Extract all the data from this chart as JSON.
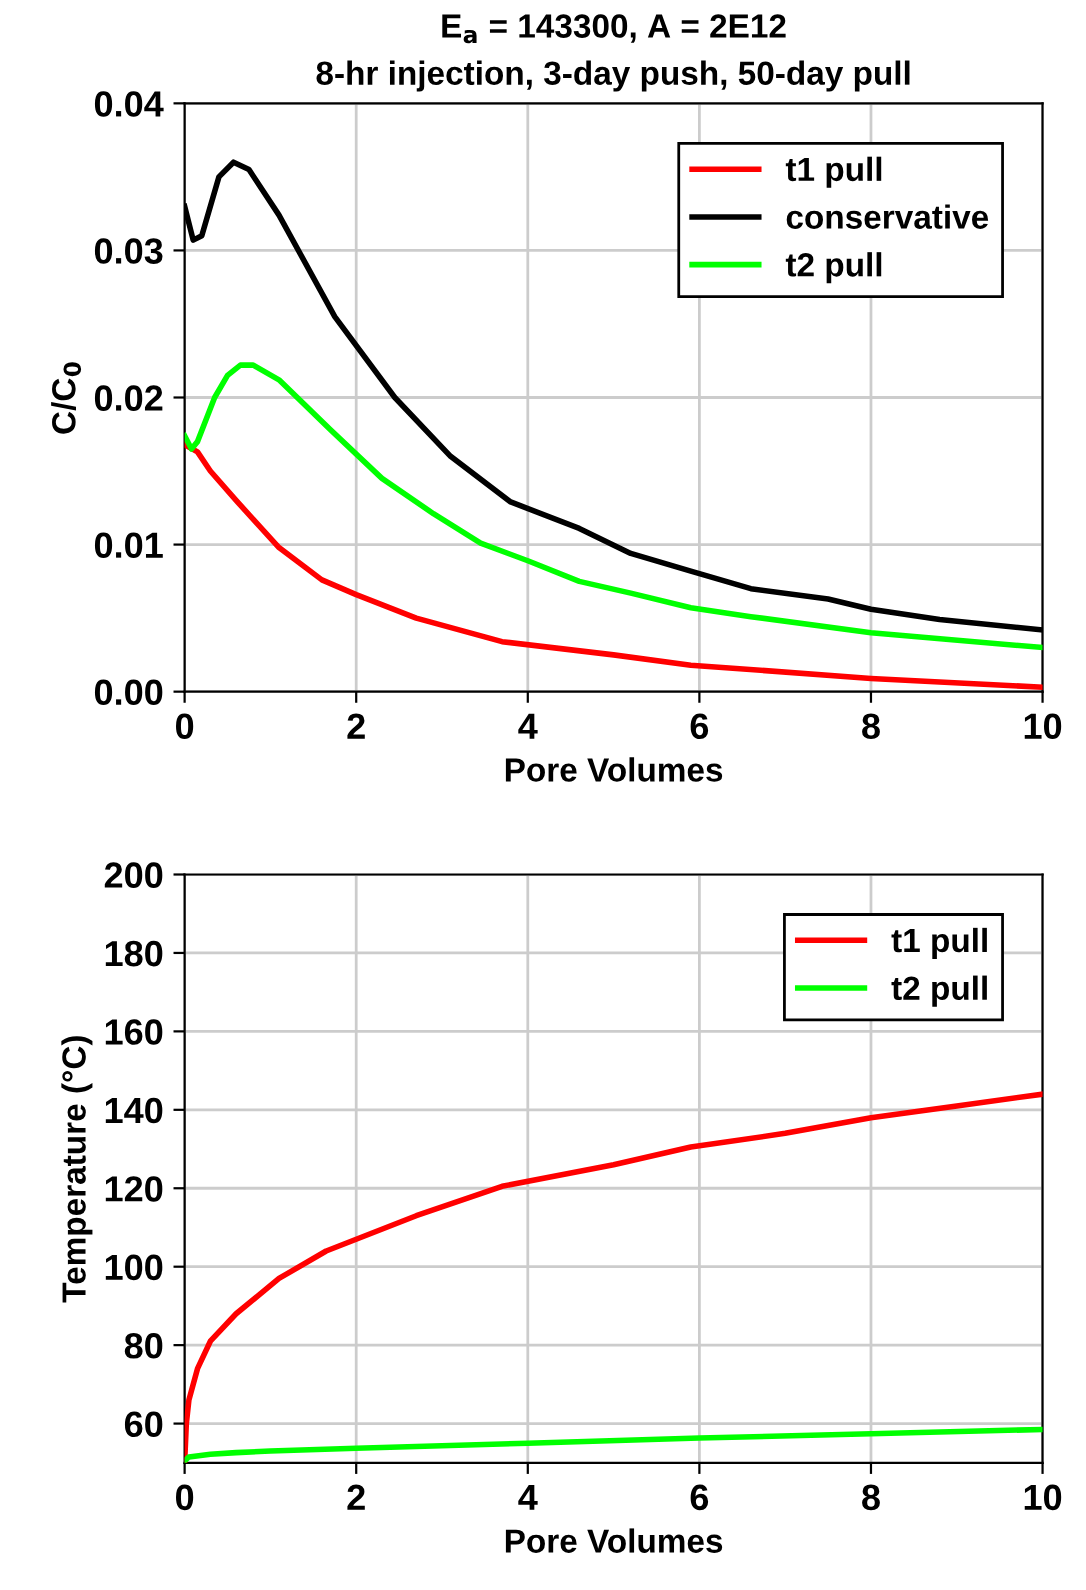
{
  "chart_data": [
    {
      "type": "line",
      "title": "E$_{a}$ = 143300, A = 2E12",
      "subtitle": "8-hr injection, 3-day push, 50-day pull",
      "xlabel": "Pore Volumes",
      "ylabel": "C/C$_{0}$",
      "xlim": [
        0,
        10
      ],
      "xticks": [
        0,
        2,
        4,
        6,
        8,
        10
      ],
      "ylim": [
        0,
        0.04
      ],
      "yticks": [
        {
          "value": 0,
          "label": "0.00"
        },
        {
          "value": 0.01,
          "label": "0.01"
        },
        {
          "value": 0.02,
          "label": "0.02"
        },
        {
          "value": 0.03,
          "label": "0.03"
        },
        {
          "value": 0.04,
          "label": "0.04"
        }
      ],
      "grid": true,
      "legend": "top right",
      "series": [
        {
          "name": "t1 pull",
          "color": "#ff0000",
          "x": [
            0,
            0.15,
            0.3,
            0.6,
            1.1,
            1.6,
            2.0,
            2.7,
            3.7,
            5.0,
            5.9,
            8.0,
            10
          ],
          "values": [
            0.0168,
            0.0163,
            0.015,
            0.013,
            0.0098,
            0.0076,
            0.0066,
            0.005,
            0.0034,
            0.0025,
            0.0018,
            0.0009,
            0.0003
          ]
        },
        {
          "name": "conservative",
          "color": "#000000",
          "x": [
            0,
            0.1,
            0.2,
            0.4,
            0.57,
            0.75,
            1.1,
            1.75,
            2.45,
            3.1,
            3.8,
            4.6,
            5.2,
            5.9,
            6.6,
            7.5,
            8.0,
            8.8,
            10
          ],
          "values": [
            0.033,
            0.0307,
            0.031,
            0.035,
            0.036,
            0.0355,
            0.0324,
            0.0255,
            0.02,
            0.016,
            0.0129,
            0.0111,
            0.0094,
            0.0082,
            0.007,
            0.0063,
            0.0056,
            0.0049,
            0.0042
          ]
        },
        {
          "name": "t2 pull",
          "color": "#00ff00",
          "x": [
            0,
            0.08,
            0.15,
            0.35,
            0.5,
            0.65,
            0.8,
            1.1,
            1.7,
            2.3,
            2.9,
            3.45,
            4.0,
            4.6,
            5.2,
            5.9,
            6.6,
            8.0,
            10
          ],
          "values": [
            0.0174,
            0.0165,
            0.017,
            0.02,
            0.0215,
            0.0222,
            0.0222,
            0.0212,
            0.0178,
            0.0145,
            0.0121,
            0.0101,
            0.0089,
            0.0075,
            0.0067,
            0.0057,
            0.0051,
            0.004,
            0.003
          ]
        }
      ]
    },
    {
      "type": "line",
      "xlabel": "Pore Volumes",
      "ylabel": "Temperature (°C)",
      "xlim": [
        0,
        10
      ],
      "xticks": [
        0,
        2,
        4,
        6,
        8,
        10
      ],
      "ylim": [
        50,
        200
      ],
      "yticks": [
        60,
        80,
        100,
        120,
        140,
        160,
        180,
        200
      ],
      "grid": true,
      "legend": "top right",
      "series": [
        {
          "name": "t1 pull",
          "color": "#ff0000",
          "x": [
            0,
            0.02,
            0.05,
            0.15,
            0.3,
            0.6,
            1.1,
            1.65,
            2.0,
            2.7,
            3.7,
            5.0,
            5.9,
            7.0,
            8.0,
            9.0,
            10
          ],
          "values": [
            50,
            60,
            66,
            74,
            81,
            88,
            97,
            104,
            107,
            113,
            120.5,
            126,
            130.5,
            134,
            138,
            141,
            144
          ]
        },
        {
          "name": "t2 pull",
          "color": "#00ff00",
          "x": [
            0,
            0.05,
            0.3,
            0.6,
            1,
            2,
            4,
            6,
            8,
            10
          ],
          "values": [
            50.5,
            51.5,
            52.2,
            52.6,
            53,
            53.7,
            55,
            56.3,
            57.4,
            58.5
          ]
        }
      ]
    }
  ]
}
